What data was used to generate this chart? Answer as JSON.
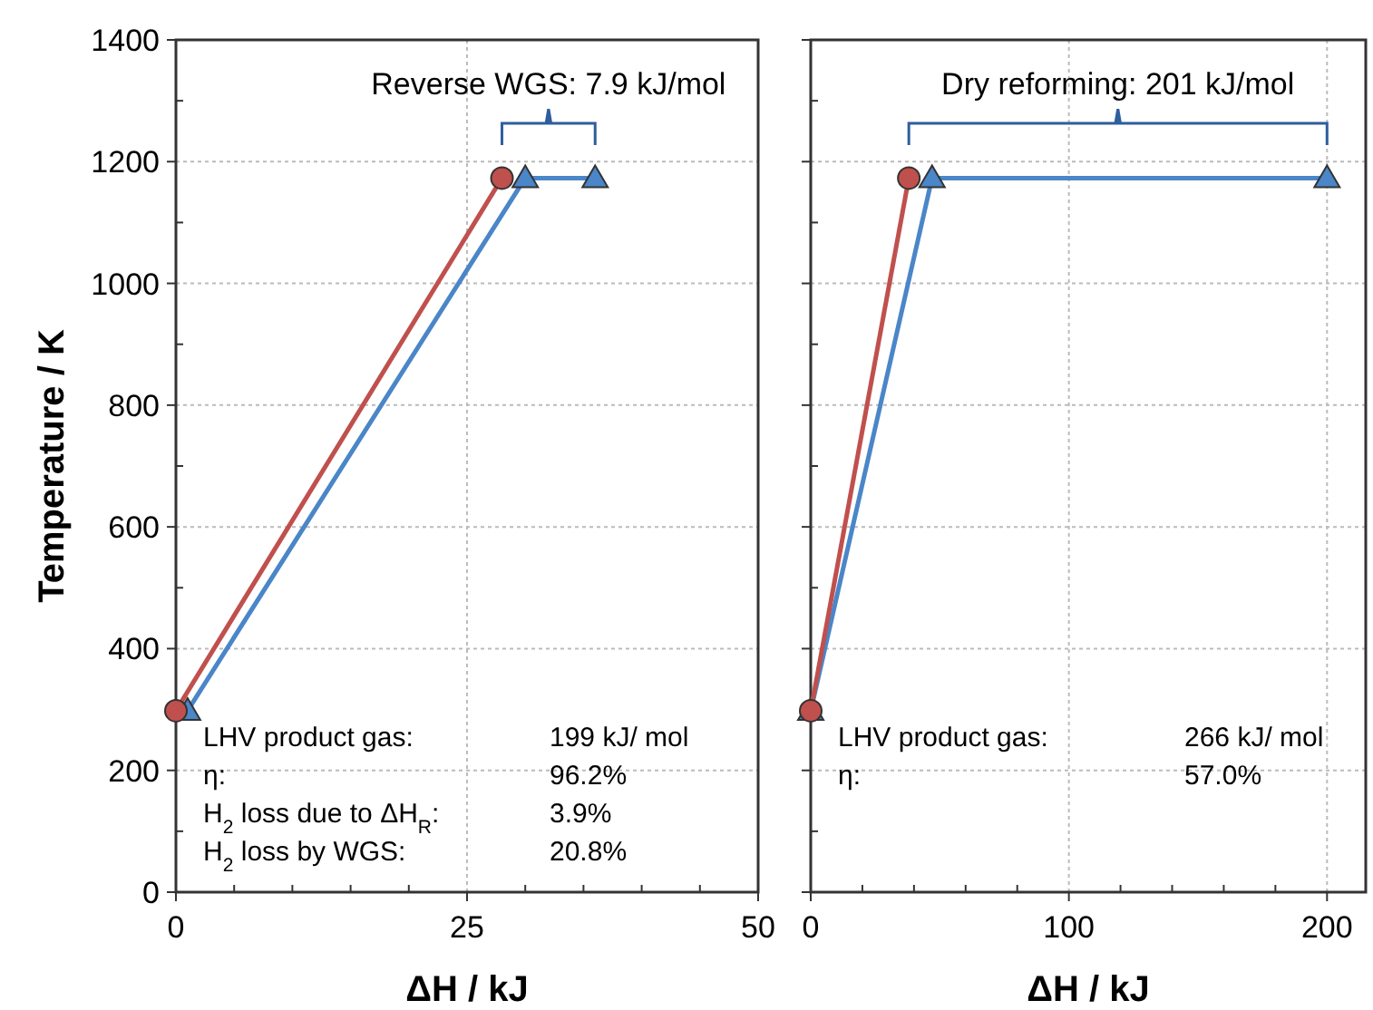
{
  "chart_data": [
    {
      "type": "line",
      "xlabel": "ΔH / kJ",
      "ylabel": "Temperature / K",
      "xlim": [
        0,
        50
      ],
      "xticks": [
        0,
        25,
        50
      ],
      "ylim": [
        0,
        1400
      ],
      "yticks": [
        0,
        200,
        400,
        600,
        800,
        1000,
        1200,
        1400
      ],
      "grid": true,
      "series": [
        {
          "color": "#c0504d",
          "marker": "circle",
          "x": [
            0,
            28
          ],
          "values": [
            298,
            1173
          ]
        },
        {
          "color": "#4a86c8",
          "marker": "triangle",
          "x": [
            1,
            30,
            36
          ],
          "values": [
            298,
            1173,
            1173
          ]
        }
      ],
      "annotations": [
        "Reverse WGS: 7.9 kJ/mol",
        "LHV product gas:",
        "199 kJ/ mol",
        "η:",
        "96.2%",
        "H$_{2}$ loss due to ΔH$_{R}$:",
        "3.9%",
        "H$_{2}$ loss by WGS:",
        "20.8%"
      ]
    },
    {
      "type": "line",
      "xlabel": "ΔH / kJ",
      "xlim": [
        0,
        215
      ],
      "xticks": [
        0,
        100,
        200
      ],
      "ylim": [
        0,
        1400
      ],
      "yticks": [
        0,
        200,
        400,
        600,
        800,
        1000,
        1200,
        1400
      ],
      "grid": true,
      "tick_labels": "x",
      "series": [
        {
          "color": "#c0504d",
          "marker": "circle",
          "x": [
            0,
            38
          ],
          "values": [
            298,
            1173
          ]
        },
        {
          "color": "#4a86c8",
          "marker": "triangle",
          "x": [
            0,
            47,
            200
          ],
          "values": [
            298,
            1173,
            1173
          ]
        }
      ],
      "annotations": [
        "Dry reforming: 201 kJ/mol",
        "LHV product gas:",
        "266 kJ/ mol",
        "η:",
        "57.0%"
      ]
    }
  ]
}
